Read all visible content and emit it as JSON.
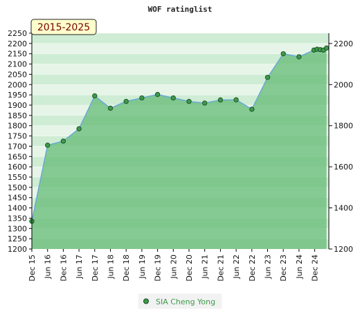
{
  "chart_data": {
    "type": "area",
    "title": "WOF ratinglist",
    "badge": "2015-2025",
    "xlabel": "",
    "ylabel": "",
    "x_ticks": [
      "Dec 15",
      "Jun 16",
      "Dec 16",
      "Jun 17",
      "Dec 17",
      "Jun 18",
      "Dec 18",
      "Jun 19",
      "Dec 19",
      "Jun 20",
      "Dec 20",
      "Jun 21",
      "Dec 21",
      "Jun 22",
      "Dec 22",
      "Jun 23",
      "Dec 23",
      "Jun 24",
      "Dec 24"
    ],
    "x_range": [
      0,
      18.85
    ],
    "ylim_left": [
      1200,
      2250
    ],
    "left_ticks": [
      1200,
      1250,
      1300,
      1350,
      1400,
      1450,
      1500,
      1550,
      1600,
      1650,
      1700,
      1750,
      1800,
      1850,
      1900,
      1950,
      2000,
      2050,
      2100,
      2150,
      2200,
      2250
    ],
    "right_ticks": [
      1200,
      1400,
      1600,
      1800,
      2000,
      2200
    ],
    "grid": true,
    "legend_position": "bottom-center",
    "series": [
      {
        "name": "SIA Cheng Yong",
        "color": "#3d9a4a",
        "x": [
          0,
          1,
          2,
          3,
          4,
          5,
          6,
          7,
          8,
          9,
          10,
          11,
          12,
          13,
          14,
          15,
          16,
          17,
          17.95,
          18.15,
          18.35,
          18.55,
          18.75
        ],
        "values": [
          1335,
          1705,
          1725,
          1785,
          1945,
          1885,
          1918,
          1935,
          1952,
          1935,
          1918,
          1910,
          1925,
          1926,
          1880,
          2035,
          2150,
          2135,
          2168,
          2172,
          2170,
          2168,
          2178
        ]
      }
    ]
  }
}
